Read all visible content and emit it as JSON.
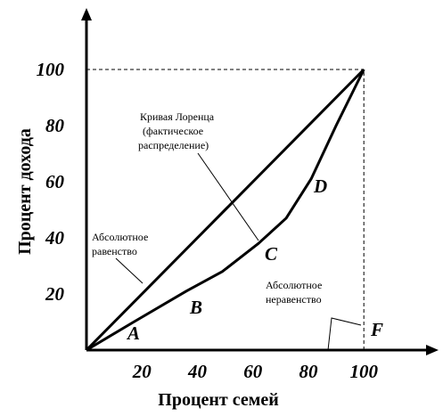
{
  "chart_data": {
    "type": "line",
    "x_label": "Процент семей",
    "y_label": "Процент дохода",
    "xlim": [
      0,
      125
    ],
    "ylim": [
      0,
      120
    ],
    "xticks": [
      20,
      40,
      60,
      80,
      100
    ],
    "yticks": [
      20,
      40,
      60,
      80,
      100
    ],
    "series": [
      {
        "color": "#000000",
        "x": [
          0,
          100
        ],
        "values": [
          0,
          100
        ]
      },
      {
        "color": "#000000",
        "x": [
          0,
          17,
          36,
          49,
          62,
          72,
          81,
          90,
          100
        ],
        "values": [
          0,
          10,
          21,
          28,
          38,
          47,
          61,
          80,
          100
        ]
      }
    ],
    "annotations": {
      "lorenz": [
        "Кривая Лоренца",
        "(фактическое",
        "распределение)"
      ],
      "equality": [
        "Абсолютное",
        "равенство"
      ],
      "inequality": [
        "Абсолютное",
        "неравенство"
      ],
      "points": [
        "A",
        "B",
        "C",
        "D",
        "F"
      ]
    }
  }
}
